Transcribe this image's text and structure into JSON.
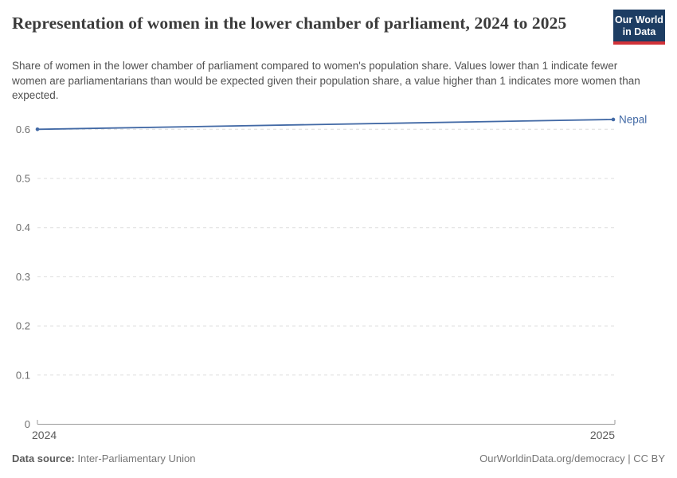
{
  "header": {
    "title": "Representation of women in the lower chamber of parliament, 2024 to 2025",
    "subtitle": "Share of women in the lower chamber of parliament compared to women's population share. Values lower than 1 indicate fewer women are parliamentarians than would be expected given their population share, a value higher than 1 indicates more women than expected.",
    "logo_line1": "Our World",
    "logo_line2": "in Data"
  },
  "chart_data": {
    "type": "line",
    "x": [
      2024,
      2025
    ],
    "xtick_labels": [
      "2024",
      "2025"
    ],
    "series": [
      {
        "name": "Nepal",
        "values": [
          0.6,
          0.62
        ],
        "color": "#4269a5"
      }
    ],
    "title": "Representation of women in the lower chamber of parliament, 2024 to 2025",
    "xlabel": "",
    "ylabel": "",
    "ylim": [
      0,
      0.65
    ],
    "yticks": [
      0,
      0.1,
      0.2,
      0.3,
      0.4,
      0.5,
      0.6
    ],
    "ytick_labels": [
      "0",
      "0.1",
      "0.2",
      "0.3",
      "0.4",
      "0.5",
      "0.6"
    ],
    "grid": "horizontal dashed",
    "legend_position": "end-of-line label"
  },
  "footer": {
    "datasource_label": "Data source:",
    "datasource_value": "Inter-Parliamentary Union",
    "credit": "OurWorldinData.org/democracy | CC BY"
  },
  "colors": {
    "line": "#4269a5",
    "grid": "#dddddd",
    "axis": "#9a9a9a",
    "ytick_text": "#6e6e6e",
    "xtick_text": "#5b5b5b",
    "logo_bg": "#1d3d63",
    "logo_stripe": "#d13239"
  }
}
